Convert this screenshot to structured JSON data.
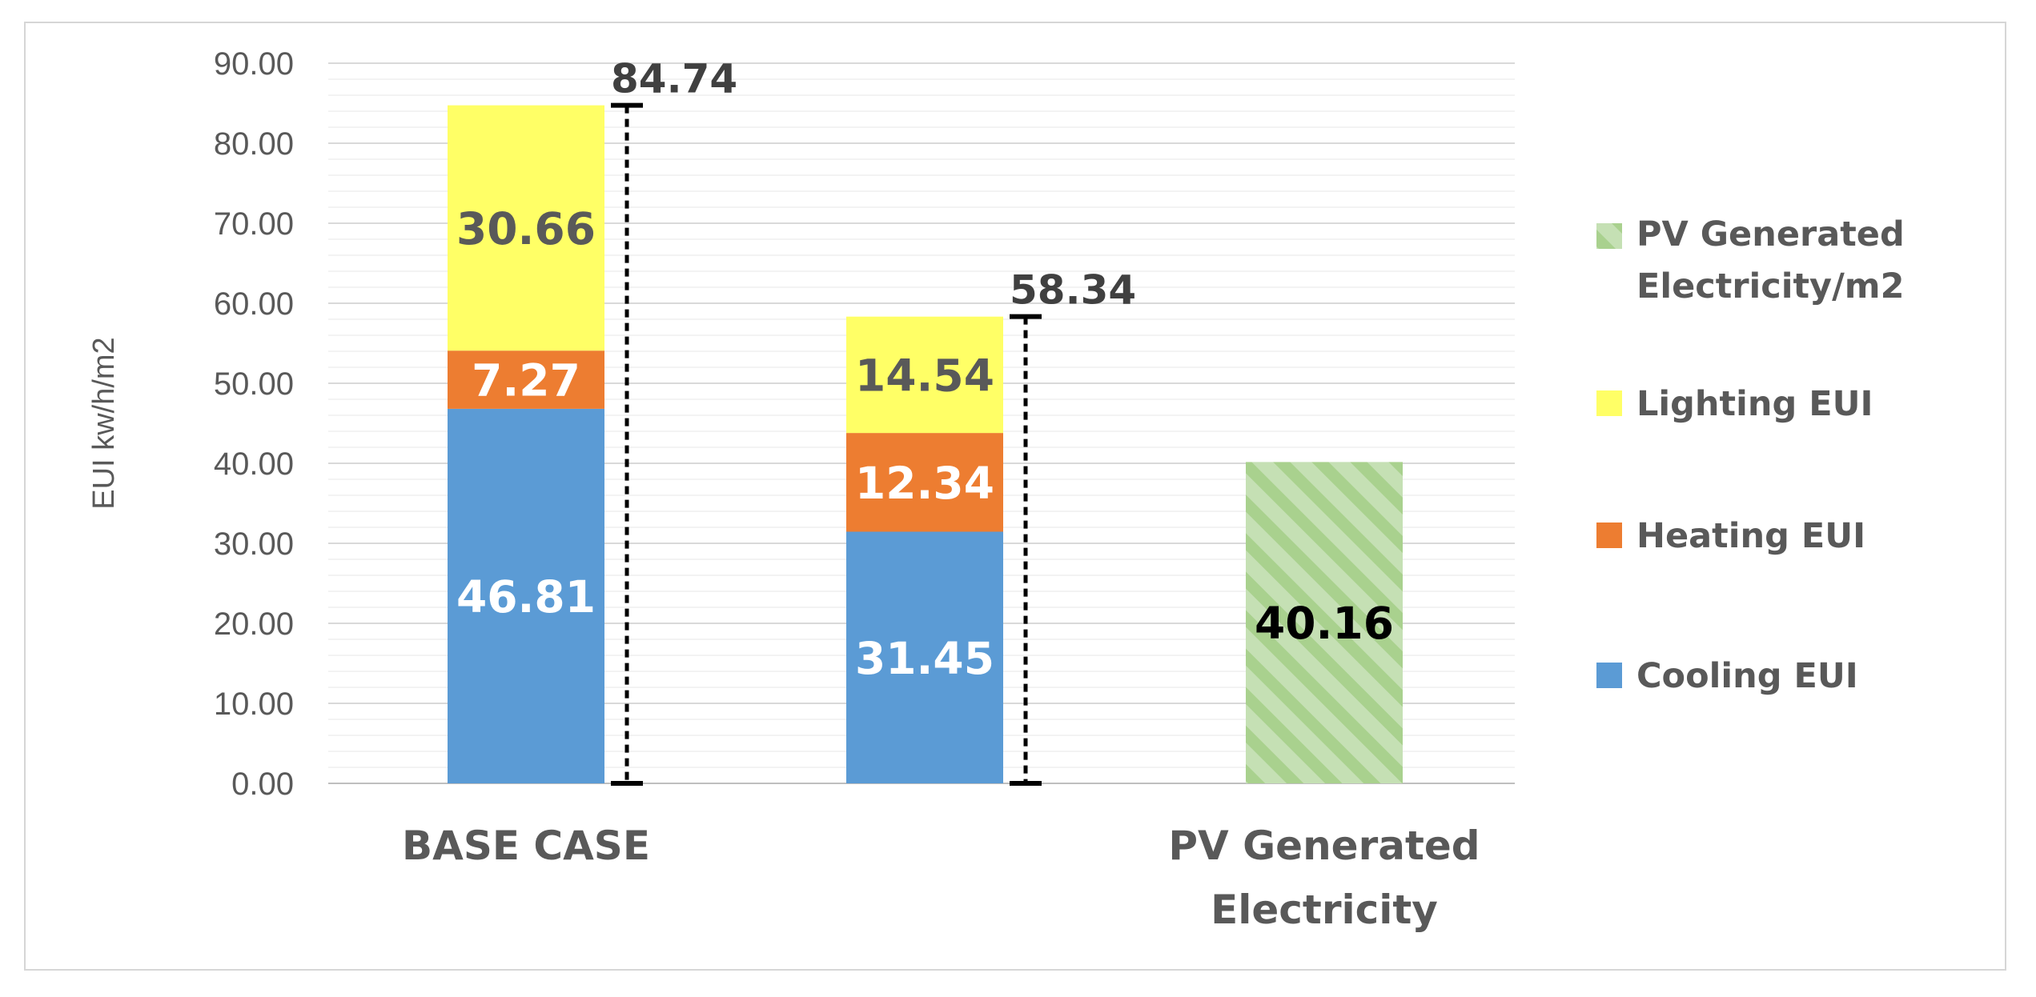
{
  "chart_data": {
    "type": "bar",
    "stacked": true,
    "title": "",
    "xlabel": "",
    "ylabel": "EUI kw/h/m2",
    "ylim": [
      0,
      90
    ],
    "yticks": [
      "0.00",
      "10.00",
      "20.00",
      "30.00",
      "40.00",
      "50.00",
      "60.00",
      "70.00",
      "80.00",
      "90.00"
    ],
    "grid": true,
    "categories": [
      {
        "label": "BASE CASE",
        "lines": [
          "BASE CASE"
        ]
      },
      {
        "label": "",
        "lines": []
      },
      {
        "label": "PV Generated Electricity",
        "lines": [
          "PV Generated",
          "Electricity"
        ]
      }
    ],
    "series": [
      {
        "name": "Cooling EUI",
        "color": "#5b9bd5",
        "pattern": "solid",
        "label_color": "#ffffff",
        "values": [
          46.81,
          31.45,
          null
        ],
        "labels": [
          "46.81",
          "31.45",
          ""
        ]
      },
      {
        "name": "Heating EUI",
        "color": "#ed7d31",
        "pattern": "solid",
        "label_color": "#ffffff",
        "values": [
          7.27,
          12.34,
          null
        ],
        "labels": [
          "7.27",
          "12.34",
          ""
        ]
      },
      {
        "name": "Lighting EUI",
        "color": "#ffff66",
        "pattern": "solid",
        "label_color": "#595959",
        "values": [
          30.66,
          14.54,
          null
        ],
        "labels": [
          "30.66",
          "14.54",
          ""
        ]
      },
      {
        "name": "PV Generated Electricity/m2",
        "lines": [
          "PV Generated",
          "Electricity/m2"
        ],
        "color": "#a9d18e",
        "pattern": "hatch",
        "label_color": "#000000",
        "values": [
          null,
          null,
          40.16
        ],
        "labels": [
          "",
          "",
          "40.16"
        ]
      }
    ],
    "totals": [
      {
        "category_index": 0,
        "value": 84.74,
        "label": "84.74"
      },
      {
        "category_index": 1,
        "value": 58.34,
        "label": "58.34"
      }
    ],
    "legend_position": "right",
    "legend_order": [
      "PV Generated Electricity/m2",
      "Lighting EUI",
      "Heating EUI",
      "Cooling EUI"
    ]
  }
}
